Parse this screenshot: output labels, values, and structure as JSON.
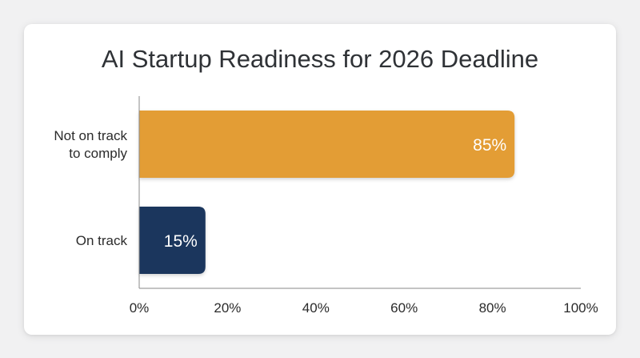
{
  "chart_data": {
    "type": "bar",
    "orientation": "horizontal",
    "title": "AI Startup Readiness for 2026 Deadline",
    "xlabel": "",
    "ylabel": "",
    "categories": [
      "Not on track to comply",
      "On track"
    ],
    "category_lines": [
      [
        "Not on track",
        "to comply"
      ],
      [
        "On track"
      ]
    ],
    "values": [
      85,
      15
    ],
    "data_labels": [
      "85%",
      "15%"
    ],
    "colors": [
      "#e39d35",
      "#1b365d"
    ],
    "xlim": [
      0,
      100
    ],
    "x_ticks": [
      0,
      20,
      40,
      60,
      80,
      100
    ],
    "x_tick_labels": [
      "0%",
      "20%",
      "40%",
      "60%",
      "80%",
      "100%"
    ],
    "grid": false,
    "legend": "none"
  }
}
